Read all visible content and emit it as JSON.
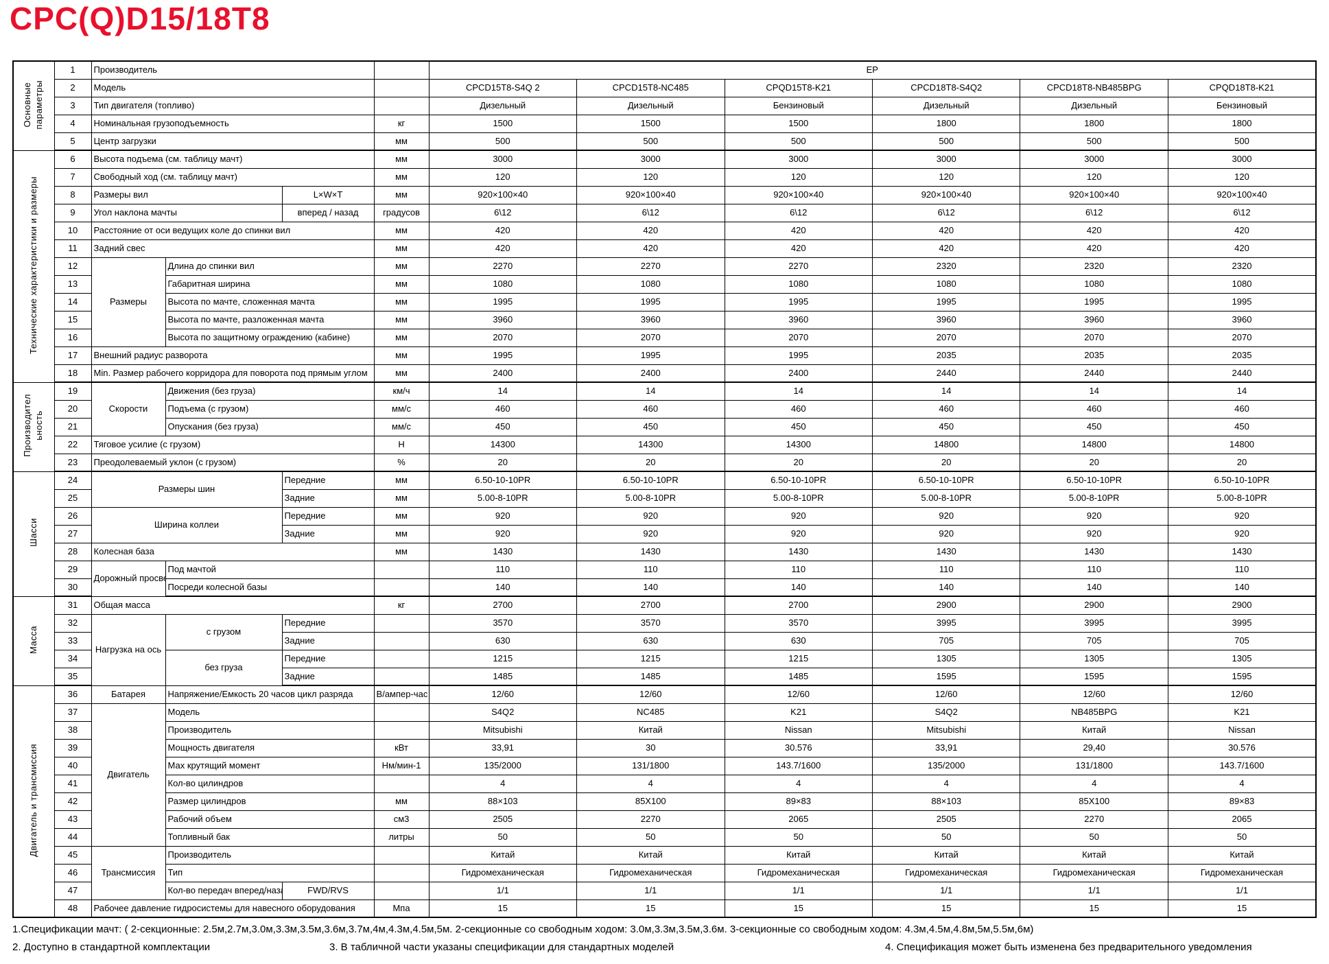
{
  "page_title": "CPC(Q)D15/18T8",
  "accent_color": "#e8112d",
  "table": {
    "sections": [
      {
        "label": "Основные\nпараметры",
        "rows": 5
      },
      {
        "label": "Технические характеристики и размеры",
        "rows": 13
      },
      {
        "label": "Производител\nьность",
        "rows": 5
      },
      {
        "label": "Шасси",
        "rows": 7
      },
      {
        "label": "Масса",
        "rows": 5
      },
      {
        "label": "Двигатель и трансмиссия",
        "rows": 13
      }
    ],
    "rows": [
      {
        "num": "1",
        "labels": [
          {
            "t": "Производитель",
            "cs": 3
          }
        ],
        "unit": "",
        "vals": [
          "EP"
        ],
        "span": 6
      },
      {
        "num": "2",
        "labels": [
          {
            "t": "Модель",
            "cs": 3
          }
        ],
        "unit": "",
        "vals": [
          "CPCD15T8-S4Q 2",
          "CPCD15T8-NC485",
          "CPQD15T8-K21",
          "CPCD18T8-S4Q2",
          "CPCD18T8-NB485BPG",
          "CPQD18T8-K21"
        ]
      },
      {
        "num": "3",
        "labels": [
          {
            "t": "Тип двигателя (топливо)",
            "cs": 3
          }
        ],
        "unit": "",
        "vals": [
          "Дизельный",
          "Дизельный",
          "Бензиновый",
          "Дизельный",
          "Дизельный",
          "Бензиновый"
        ]
      },
      {
        "num": "4",
        "labels": [
          {
            "t": "Номинальная грузоподъемность",
            "cs": 3
          }
        ],
        "unit": "кг",
        "vals": [
          "1500",
          "1500",
          "1500",
          "1800",
          "1800",
          "1800"
        ]
      },
      {
        "num": "5",
        "labels": [
          {
            "t": "Центр загрузки",
            "cs": 3
          }
        ],
        "unit": "мм",
        "vals": [
          "500",
          "500",
          "500",
          "500",
          "500",
          "500"
        ]
      },
      {
        "num": "6",
        "labels": [
          {
            "t": "Высота подъема (см. таблицу мачт)",
            "cs": 3
          }
        ],
        "unit": "мм",
        "vals": [
          "3000",
          "3000",
          "3000",
          "3000",
          "3000",
          "3000"
        ]
      },
      {
        "num": "7",
        "labels": [
          {
            "t": "Свободный ход (см. таблицу мачт)",
            "cs": 3
          }
        ],
        "unit": "мм",
        "vals": [
          "120",
          "120",
          "120",
          "120",
          "120",
          "120"
        ]
      },
      {
        "num": "8",
        "labels": [
          {
            "t": "Размеры вил",
            "cs": 2
          },
          {
            "t": "L×W×T",
            "cls": "ctr"
          }
        ],
        "unit": "мм",
        "vals": [
          "920×100×40",
          "920×100×40",
          "920×100×40",
          "920×100×40",
          "920×100×40",
          "920×100×40"
        ]
      },
      {
        "num": "9",
        "labels": [
          {
            "t": "Угол наклона мачты",
            "cs": 2
          },
          {
            "t": "вперед / назад",
            "cls": "ctr"
          }
        ],
        "unit": "градусов",
        "vals": [
          "6\\12",
          "6\\12",
          "6\\12",
          "6\\12",
          "6\\12",
          "6\\12"
        ]
      },
      {
        "num": "10",
        "labels": [
          {
            "t": "Расстояние от оси ведущих коле до спинки вил",
            "cs": 3
          }
        ],
        "unit": "мм",
        "vals": [
          "420",
          "420",
          "420",
          "420",
          "420",
          "420"
        ]
      },
      {
        "num": "11",
        "labels": [
          {
            "t": "Задний свес",
            "cs": 3
          }
        ],
        "unit": "мм",
        "vals": [
          "420",
          "420",
          "420",
          "420",
          "420",
          "420"
        ]
      },
      {
        "num": "12",
        "labels": [
          {
            "t": "Размеры",
            "rs": 5,
            "cls": "grp"
          },
          {
            "t": "Длина до спинки вил",
            "cs": 2
          }
        ],
        "unit": "мм",
        "vals": [
          "2270",
          "2270",
          "2270",
          "2320",
          "2320",
          "2320"
        ]
      },
      {
        "num": "13",
        "labels": [
          {
            "t": "Габаритная ширина",
            "cs": 2
          }
        ],
        "unit": "мм",
        "vals": [
          "1080",
          "1080",
          "1080",
          "1080",
          "1080",
          "1080"
        ]
      },
      {
        "num": "14",
        "labels": [
          {
            "t": "Высота по мачте, сложенная мачта",
            "cs": 2
          }
        ],
        "unit": "мм",
        "vals": [
          "1995",
          "1995",
          "1995",
          "1995",
          "1995",
          "1995"
        ]
      },
      {
        "num": "15",
        "labels": [
          {
            "t": "Высота по мачте, разложенная мачта",
            "cs": 2
          }
        ],
        "unit": "мм",
        "vals": [
          "3960",
          "3960",
          "3960",
          "3960",
          "3960",
          "3960"
        ]
      },
      {
        "num": "16",
        "labels": [
          {
            "t": "Высота по защитному ограждению (кабине)",
            "cs": 2
          }
        ],
        "unit": "мм",
        "vals": [
          "2070",
          "2070",
          "2070",
          "2070",
          "2070",
          "2070"
        ]
      },
      {
        "num": "17",
        "labels": [
          {
            "t": "Внешний радиус разворота",
            "cs": 3
          }
        ],
        "unit": "мм",
        "vals": [
          "1995",
          "1995",
          "1995",
          "2035",
          "2035",
          "2035"
        ]
      },
      {
        "num": "18",
        "labels": [
          {
            "t": "Min. Размер рабочего корридора для поворота под прямым углом",
            "cs": 3
          }
        ],
        "unit": "мм",
        "vals": [
          "2400",
          "2400",
          "2400",
          "2440",
          "2440",
          "2440"
        ]
      },
      {
        "num": "19",
        "labels": [
          {
            "t": "Скорости",
            "rs": 3,
            "cls": "grp"
          },
          {
            "t": "Движения (без груза)",
            "cs": 2
          }
        ],
        "unit": "км/ч",
        "vals": [
          "14",
          "14",
          "14",
          "14",
          "14",
          "14"
        ]
      },
      {
        "num": "20",
        "labels": [
          {
            "t": "Подъема (с грузом)",
            "cs": 2
          }
        ],
        "unit": "мм/с",
        "vals": [
          "460",
          "460",
          "460",
          "460",
          "460",
          "460"
        ]
      },
      {
        "num": "21",
        "labels": [
          {
            "t": "Опускания (без груза)",
            "cs": 2
          }
        ],
        "unit": "мм/с",
        "vals": [
          "450",
          "450",
          "450",
          "450",
          "450",
          "450"
        ]
      },
      {
        "num": "22",
        "labels": [
          {
            "t": "Тяговое усилие (с грузом)",
            "cs": 3
          }
        ],
        "unit": "Н",
        "vals": [
          "14300",
          "14300",
          "14300",
          "14800",
          "14800",
          "14800"
        ]
      },
      {
        "num": "23",
        "labels": [
          {
            "t": "Преодолеваемый уклон (с грузом)",
            "cs": 3
          }
        ],
        "unit": "%",
        "vals": [
          "20",
          "20",
          "20",
          "20",
          "20",
          "20"
        ]
      },
      {
        "num": "24",
        "labels": [
          {
            "t": "Размеры шин",
            "cs": 2,
            "rs": 2,
            "cls": "grp"
          },
          {
            "t": "Передние"
          }
        ],
        "unit": "мм",
        "vals": [
          "6.50-10-10PR",
          "6.50-10-10PR",
          "6.50-10-10PR",
          "6.50-10-10PR",
          "6.50-10-10PR",
          "6.50-10-10PR"
        ]
      },
      {
        "num": "25",
        "labels": [
          {
            "t": "Задние"
          }
        ],
        "unit": "мм",
        "vals": [
          "5.00-8-10PR",
          "5.00-8-10PR",
          "5.00-8-10PR",
          "5.00-8-10PR",
          "5.00-8-10PR",
          "5.00-8-10PR"
        ]
      },
      {
        "num": "26",
        "labels": [
          {
            "t": "Ширина коллеи",
            "cs": 2,
            "rs": 2,
            "cls": "grp"
          },
          {
            "t": "Передние"
          }
        ],
        "unit": "мм",
        "vals": [
          "920",
          "920",
          "920",
          "920",
          "920",
          "920"
        ]
      },
      {
        "num": "27",
        "labels": [
          {
            "t": "Задние"
          }
        ],
        "unit": "мм",
        "vals": [
          "920",
          "920",
          "920",
          "920",
          "920",
          "920"
        ]
      },
      {
        "num": "28",
        "labels": [
          {
            "t": "Колесная база",
            "cs": 3
          }
        ],
        "unit": "мм",
        "vals": [
          "1430",
          "1430",
          "1430",
          "1430",
          "1430",
          "1430"
        ]
      },
      {
        "num": "29",
        "labels": [
          {
            "t": "Дорожный просвет",
            "rs": 2,
            "cls": "lbl wrap"
          },
          {
            "t": "Под мачтой",
            "cs": 2
          }
        ],
        "unit": "",
        "vals": [
          "110",
          "110",
          "110",
          "110",
          "110",
          "110"
        ]
      },
      {
        "num": "30",
        "labels": [
          {
            "t": "Посреди колесной базы",
            "cs": 2
          }
        ],
        "unit": "",
        "vals": [
          "140",
          "140",
          "140",
          "140",
          "140",
          "140"
        ]
      },
      {
        "num": "31",
        "labels": [
          {
            "t": "Общая масса",
            "cs": 3
          }
        ],
        "unit": "кг",
        "vals": [
          "2700",
          "2700",
          "2700",
          "2900",
          "2900",
          "2900"
        ]
      },
      {
        "num": "32",
        "labels": [
          {
            "t": "Нагрузка на ось",
            "rs": 4,
            "cls": "grp wrap"
          },
          {
            "t": "с грузом",
            "rs": 2,
            "cls": "grp"
          },
          {
            "t": "Передние"
          }
        ],
        "unit": "",
        "vals": [
          "3570",
          "3570",
          "3570",
          "3995",
          "3995",
          "3995"
        ]
      },
      {
        "num": "33",
        "labels": [
          {
            "t": "Задние"
          }
        ],
        "unit": "",
        "vals": [
          "630",
          "630",
          "630",
          "705",
          "705",
          "705"
        ]
      },
      {
        "num": "34",
        "labels": [
          {
            "t": "без груза",
            "rs": 2,
            "cls": "grp"
          },
          {
            "t": "Передние"
          }
        ],
        "unit": "",
        "vals": [
          "1215",
          "1215",
          "1215",
          "1305",
          "1305",
          "1305"
        ]
      },
      {
        "num": "35",
        "labels": [
          {
            "t": "Задние"
          }
        ],
        "unit": "",
        "vals": [
          "1485",
          "1485",
          "1485",
          "1595",
          "1595",
          "1595"
        ]
      },
      {
        "num": "36",
        "labels": [
          {
            "t": "Батарея",
            "cls": "grp"
          },
          {
            "t": "Напряжение/Емкость 20 часов цикл разряда",
            "cs": 2
          }
        ],
        "unit": "В/ампер-час",
        "vals": [
          "12/60",
          "12/60",
          "12/60",
          "12/60",
          "12/60",
          "12/60"
        ]
      },
      {
        "num": "37",
        "labels": [
          {
            "t": "Двигатель",
            "rs": 8,
            "cls": "grp"
          },
          {
            "t": "Модель",
            "cs": 2
          }
        ],
        "unit": "",
        "vals": [
          "S4Q2",
          "NC485",
          "K21",
          "S4Q2",
          "NB485BPG",
          "K21"
        ]
      },
      {
        "num": "38",
        "labels": [
          {
            "t": "Производитель",
            "cs": 2
          }
        ],
        "unit": "",
        "vals": [
          "Mitsubishi",
          "Китай",
          "Nissan",
          "Mitsubishi",
          "Китай",
          "Nissan"
        ]
      },
      {
        "num": "39",
        "labels": [
          {
            "t": "Мощность двигателя",
            "cs": 2
          }
        ],
        "unit": "кВт",
        "vals": [
          "33,91",
          "30",
          "30.576",
          "33,91",
          "29,40",
          "30.576"
        ]
      },
      {
        "num": "40",
        "labels": [
          {
            "t": "Мах крутящий момент",
            "cs": 2
          }
        ],
        "unit": "Нм/мин-1",
        "vals": [
          "135/2000",
          "131/1800",
          "143.7/1600",
          "135/2000",
          "131/1800",
          "143.7/1600"
        ]
      },
      {
        "num": "41",
        "labels": [
          {
            "t": "Кол-во цилиндров",
            "cs": 2
          }
        ],
        "unit": "",
        "vals": [
          "4",
          "4",
          "4",
          "4",
          "4",
          "4"
        ]
      },
      {
        "num": "42",
        "labels": [
          {
            "t": "Размер цилиндров",
            "cs": 2
          }
        ],
        "unit": "мм",
        "vals": [
          "88×103",
          "85X100",
          "89×83",
          "88×103",
          "85X100",
          "89×83"
        ]
      },
      {
        "num": "43",
        "labels": [
          {
            "t": "Рабочий объем",
            "cs": 2
          }
        ],
        "unit": "см3",
        "vals": [
          "2505",
          "2270",
          "2065",
          "2505",
          "2270",
          "2065"
        ]
      },
      {
        "num": "44",
        "labels": [
          {
            "t": "Топливный бак",
            "cs": 2
          }
        ],
        "unit": "литры",
        "vals": [
          "50",
          "50",
          "50",
          "50",
          "50",
          "50"
        ]
      },
      {
        "num": "45",
        "labels": [
          {
            "t": "Трансмиссия",
            "rs": 3,
            "cls": "grp"
          },
          {
            "t": "Производитель",
            "cs": 2
          }
        ],
        "unit": "",
        "vals": [
          "Китай",
          "Китай",
          "Китай",
          "Китай",
          "Китай",
          "Китай"
        ]
      },
      {
        "num": "46",
        "labels": [
          {
            "t": "Тип",
            "cs": 2
          }
        ],
        "unit": "",
        "vals": [
          "Гидромеханическая",
          "Гидромеханическая",
          "Гидромеханическая",
          "Гидромеханическая",
          "Гидромеханическая",
          "Гидромеханическая"
        ]
      },
      {
        "num": "47",
        "labels": [
          {
            "t": "Кол-во передач вперед/назад"
          },
          {
            "t": "FWD/RVS",
            "cls": "ctr"
          }
        ],
        "unit": "",
        "vals": [
          "1/1",
          "1/1",
          "1/1",
          "1/1",
          "1/1",
          "1/1"
        ]
      },
      {
        "num": "48",
        "labels": [
          {
            "t": "Рабочее давление гидросистемы для навесного оборудования",
            "cs": 3
          }
        ],
        "unit": "Мпа",
        "vals": [
          "15",
          "15",
          "15",
          "15",
          "15",
          "15"
        ]
      }
    ]
  },
  "footnotes": {
    "line1": "1.Спецификации мачт: ( 2-секционные: 2.5м,2.7м,3.0м,3.3м,3.5м,3.6м,3.7м,4м,4.3м,4.5м,5м.  2-секционные со свободным ходом: 3.0м,3.3м,3.5м,3.6м.  3-секционные со свободным ходом: 4.3м,4.5м,4.8м,5м,5.5м,6м)",
    "note2": "2. Доступно в стандартной комплектации",
    "note3": "3. В табличной части указаны спецификации для стандартных моделей",
    "note4": "4. Спецификация может быть изменена без предварительного уведомления"
  }
}
